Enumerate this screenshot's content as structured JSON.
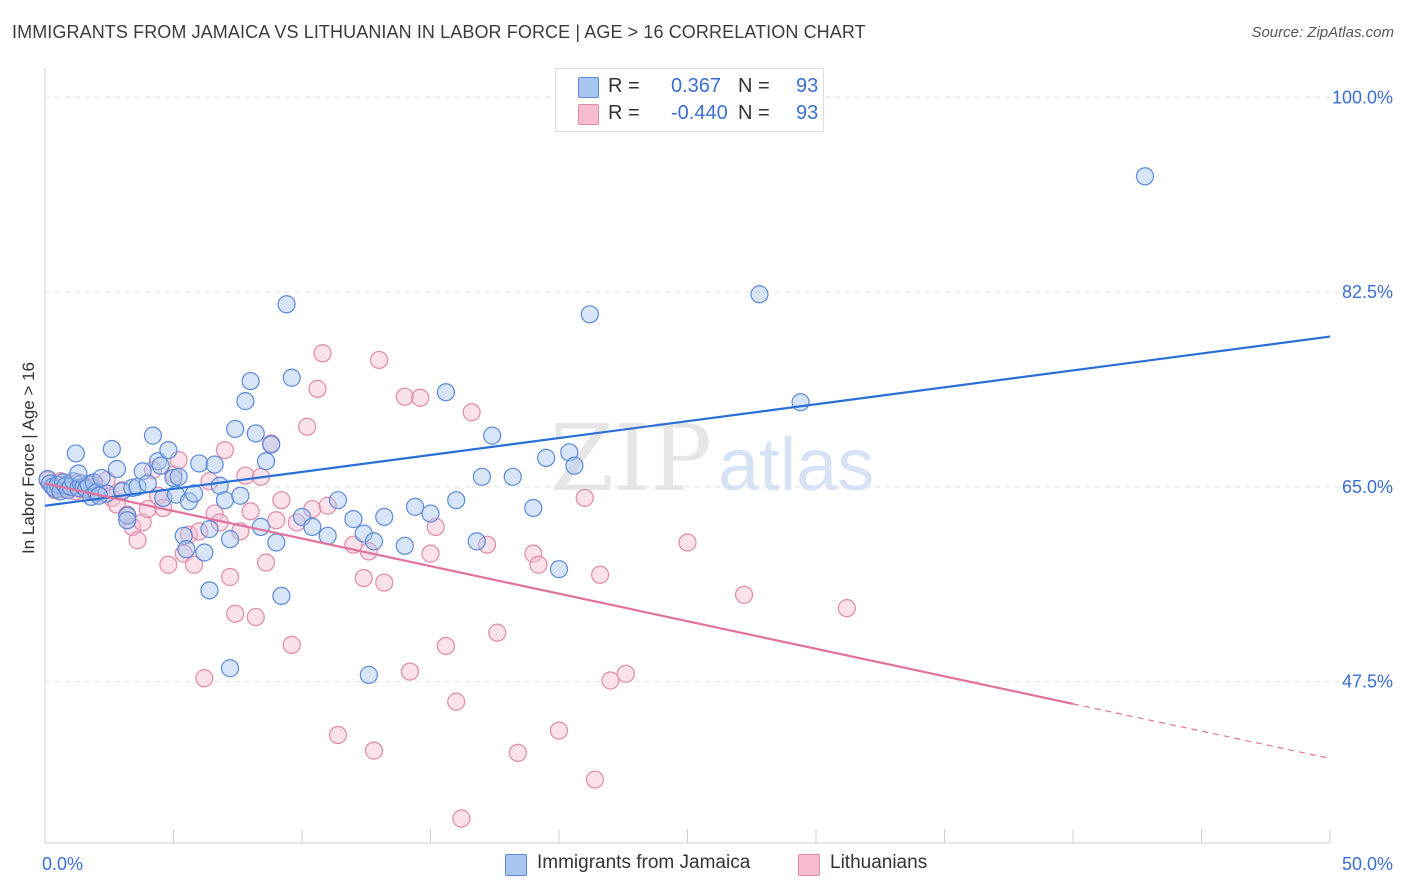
{
  "title": "IMMIGRANTS FROM JAMAICA VS LITHUANIAN IN LABOR FORCE | AGE > 16 CORRELATION CHART",
  "source": "Source: ZipAtlas.com",
  "watermark": {
    "zip": "ZIP",
    "atlas": "atlas"
  },
  "legend": {
    "rows": [
      {
        "r_label": "R =",
        "r_value": "0.367",
        "n_label": "N =",
        "n_value": "93"
      },
      {
        "r_label": "R =",
        "r_value": "-0.440",
        "n_label": "N =",
        "n_value": "93"
      }
    ]
  },
  "bottom_legend": {
    "series1": "Immigrants from Jamaica",
    "series2": "Lithuanians"
  },
  "colors": {
    "blue_fill": "#a9c6f0",
    "blue_stroke": "#5a8ad8",
    "blue_line": "#2a6fd6",
    "pink_fill": "#f6bcd0",
    "pink_stroke": "#e089a9",
    "pink_line": "#e0729c",
    "axis_text": "#3a6fd0",
    "grid": "#e2e2e2"
  },
  "chart_data": {
    "type": "scatter",
    "title": "IMMIGRANTS FROM JAMAICA VS LITHUANIAN IN LABOR FORCE | AGE > 16 CORRELATION CHART",
    "xlabel": "",
    "ylabel": "In Labor Force | Age > 16",
    "xlim": [
      0,
      50
    ],
    "ylim": [
      33,
      102
    ],
    "x_tick_labels": [
      "0.0%",
      "50.0%"
    ],
    "y_ticks": [
      47.5,
      65.0,
      82.5,
      100.0
    ],
    "y_tick_labels": [
      "47.5%",
      "65.0%",
      "82.5%",
      "100.0%"
    ],
    "grid": true,
    "legend_position": "top-center",
    "series": [
      {
        "name": "Immigrants from Jamaica",
        "r": 0.367,
        "n": 93,
        "trend": {
          "x": [
            0,
            50
          ],
          "y": [
            63.3,
            78.5
          ]
        },
        "points": [
          [
            0.1,
            65.7
          ],
          [
            0.2,
            65.3
          ],
          [
            0.3,
            65.0
          ],
          [
            0.4,
            64.8
          ],
          [
            0.5,
            65.2
          ],
          [
            0.6,
            64.6
          ],
          [
            0.7,
            65.4
          ],
          [
            0.8,
            65.1
          ],
          [
            0.9,
            64.7
          ],
          [
            1.0,
            65.0
          ],
          [
            1.1,
            65.5
          ],
          [
            1.2,
            68.0
          ],
          [
            1.3,
            64.9
          ],
          [
            1.4,
            65.3
          ],
          [
            1.5,
            65.0
          ],
          [
            1.6,
            64.8
          ],
          [
            1.7,
            65.2
          ],
          [
            1.8,
            64.1
          ],
          [
            1.9,
            65.4
          ],
          [
            2.0,
            64.5
          ],
          [
            2.2,
            65.8
          ],
          [
            2.4,
            64.4
          ],
          [
            2.6,
            68.4
          ],
          [
            2.8,
            66.6
          ],
          [
            3.0,
            64.6
          ],
          [
            3.2,
            62.4
          ],
          [
            3.4,
            64.9
          ],
          [
            3.6,
            65.0
          ],
          [
            3.8,
            66.4
          ],
          [
            4.0,
            65.3
          ],
          [
            4.2,
            69.6
          ],
          [
            4.4,
            67.3
          ],
          [
            4.6,
            64.0
          ],
          [
            4.8,
            68.3
          ],
          [
            5.0,
            65.8
          ],
          [
            5.1,
            64.3
          ],
          [
            5.2,
            65.9
          ],
          [
            5.4,
            60.6
          ],
          [
            5.5,
            59.4
          ],
          [
            5.6,
            63.7
          ],
          [
            5.8,
            64.4
          ],
          [
            6.0,
            67.1
          ],
          [
            6.2,
            59.1
          ],
          [
            6.4,
            61.2
          ],
          [
            6.6,
            67.0
          ],
          [
            6.8,
            65.1
          ],
          [
            7.0,
            63.8
          ],
          [
            7.2,
            60.3
          ],
          [
            7.4,
            70.2
          ],
          [
            7.6,
            64.2
          ],
          [
            7.8,
            72.7
          ],
          [
            8.0,
            74.5
          ],
          [
            8.2,
            69.8
          ],
          [
            8.4,
            61.4
          ],
          [
            8.6,
            67.3
          ],
          [
            8.8,
            68.8
          ],
          [
            9.0,
            60.0
          ],
          [
            9.2,
            55.2
          ],
          [
            9.4,
            81.4
          ],
          [
            9.6,
            74.8
          ],
          [
            10.0,
            62.3
          ],
          [
            10.4,
            61.4
          ],
          [
            11.0,
            60.6
          ],
          [
            11.4,
            63.8
          ],
          [
            12.0,
            62.1
          ],
          [
            12.4,
            60.8
          ],
          [
            12.8,
            60.1
          ],
          [
            13.2,
            62.3
          ],
          [
            14.0,
            59.7
          ],
          [
            14.4,
            63.2
          ],
          [
            15.0,
            62.6
          ],
          [
            15.6,
            73.5
          ],
          [
            16.0,
            63.8
          ],
          [
            16.8,
            60.1
          ],
          [
            17.0,
            65.9
          ],
          [
            17.4,
            69.6
          ],
          [
            18.2,
            65.9
          ],
          [
            19.0,
            63.1
          ],
          [
            19.5,
            67.6
          ],
          [
            20.0,
            57.6
          ],
          [
            20.4,
            68.1
          ],
          [
            20.6,
            66.9
          ],
          [
            21.2,
            80.5
          ],
          [
            6.4,
            55.7
          ],
          [
            7.2,
            48.7
          ],
          [
            12.6,
            48.1
          ],
          [
            27.8,
            82.3
          ],
          [
            29.4,
            72.6
          ],
          [
            42.8,
            92.9
          ],
          [
            3.2,
            62.0
          ],
          [
            2.1,
            64.2
          ],
          [
            1.3,
            66.2
          ],
          [
            4.5,
            66.9
          ]
        ]
      },
      {
        "name": "Lithuanians",
        "r": -0.44,
        "n": 93,
        "trend": {
          "x": [
            0,
            40
          ],
          "y": [
            65.3,
            45.5
          ]
        },
        "trend_extension": {
          "x": [
            40,
            50
          ],
          "y": [
            45.5,
            40.6
          ]
        },
        "points": [
          [
            0.1,
            65.6
          ],
          [
            0.2,
            65.3
          ],
          [
            0.3,
            65.0
          ],
          [
            0.4,
            64.7
          ],
          [
            0.5,
            65.2
          ],
          [
            0.6,
            65.5
          ],
          [
            0.7,
            64.8
          ],
          [
            0.8,
            65.1
          ],
          [
            0.9,
            65.3
          ],
          [
            1.0,
            64.9
          ],
          [
            1.1,
            65.0
          ],
          [
            1.2,
            64.6
          ],
          [
            1.3,
            65.4
          ],
          [
            1.4,
            64.8
          ],
          [
            1.5,
            65.2
          ],
          [
            1.6,
            65.0
          ],
          [
            1.7,
            64.7
          ],
          [
            1.8,
            65.3
          ],
          [
            1.9,
            64.9
          ],
          [
            2.0,
            65.1
          ],
          [
            2.2,
            64.4
          ],
          [
            2.4,
            65.6
          ],
          [
            2.6,
            64.0
          ],
          [
            2.8,
            63.4
          ],
          [
            3.0,
            64.7
          ],
          [
            3.2,
            62.5
          ],
          [
            3.4,
            61.4
          ],
          [
            3.6,
            60.2
          ],
          [
            3.8,
            61.8
          ],
          [
            4.0,
            63.0
          ],
          [
            4.2,
            66.5
          ],
          [
            4.4,
            64.2
          ],
          [
            4.6,
            63.1
          ],
          [
            4.8,
            58.0
          ],
          [
            5.0,
            66.1
          ],
          [
            5.2,
            67.4
          ],
          [
            5.4,
            59.0
          ],
          [
            5.6,
            60.7
          ],
          [
            5.8,
            58.0
          ],
          [
            6.0,
            61.0
          ],
          [
            6.2,
            47.8
          ],
          [
            6.4,
            65.5
          ],
          [
            6.6,
            62.6
          ],
          [
            6.8,
            61.8
          ],
          [
            7.0,
            68.3
          ],
          [
            7.2,
            56.9
          ],
          [
            7.4,
            53.6
          ],
          [
            7.6,
            61.0
          ],
          [
            7.8,
            66.0
          ],
          [
            8.0,
            62.8
          ],
          [
            8.2,
            53.3
          ],
          [
            8.4,
            65.9
          ],
          [
            8.6,
            58.2
          ],
          [
            8.8,
            68.9
          ],
          [
            9.0,
            62.0
          ],
          [
            9.2,
            63.8
          ],
          [
            9.6,
            50.8
          ],
          [
            9.8,
            61.8
          ],
          [
            10.2,
            70.4
          ],
          [
            10.4,
            63.0
          ],
          [
            10.6,
            73.8
          ],
          [
            10.8,
            77.0
          ],
          [
            11.0,
            63.3
          ],
          [
            11.4,
            42.7
          ],
          [
            12.0,
            59.8
          ],
          [
            12.4,
            56.8
          ],
          [
            12.6,
            59.2
          ],
          [
            12.8,
            41.3
          ],
          [
            13.0,
            76.4
          ],
          [
            13.2,
            56.4
          ],
          [
            14.0,
            73.1
          ],
          [
            14.2,
            48.4
          ],
          [
            14.6,
            73.0
          ],
          [
            15.0,
            59.0
          ],
          [
            15.2,
            61.4
          ],
          [
            15.6,
            50.7
          ],
          [
            16.0,
            45.7
          ],
          [
            16.2,
            35.2
          ],
          [
            16.6,
            71.7
          ],
          [
            17.2,
            59.8
          ],
          [
            17.6,
            51.9
          ],
          [
            18.4,
            41.1
          ],
          [
            19.0,
            59.0
          ],
          [
            19.2,
            58.0
          ],
          [
            20.0,
            43.1
          ],
          [
            21.0,
            64.0
          ],
          [
            21.4,
            38.7
          ],
          [
            21.6,
            57.1
          ],
          [
            22.0,
            47.6
          ],
          [
            22.6,
            48.2
          ],
          [
            25.0,
            60.0
          ],
          [
            27.2,
            55.3
          ],
          [
            31.2,
            54.1
          ]
        ]
      }
    ]
  }
}
